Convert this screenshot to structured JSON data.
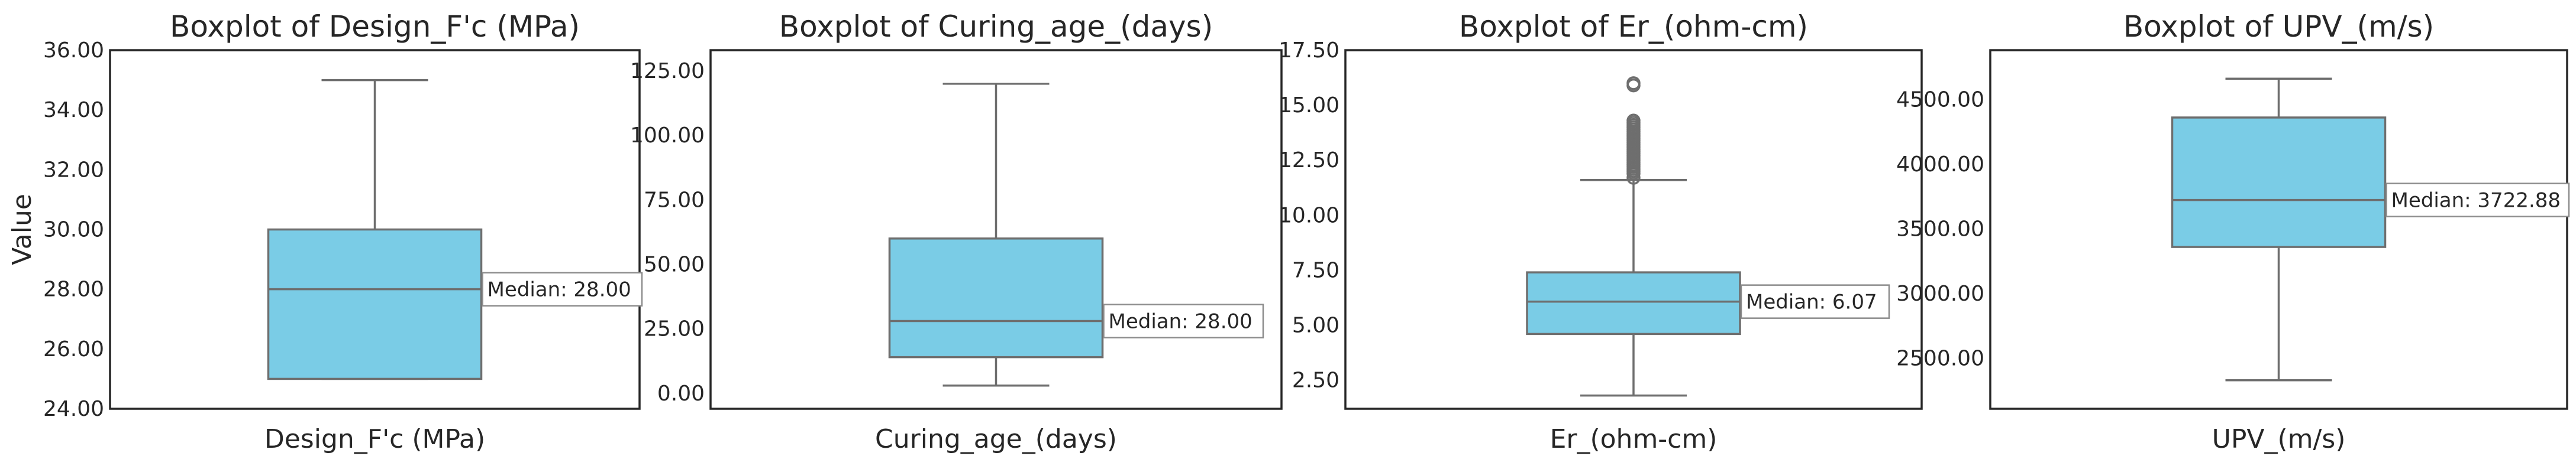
{
  "colors": {
    "box_fill": "#7ACCE6",
    "box_edge": "#6E6E6E",
    "axis_frame": "#262626",
    "annotation_border": "#8C8C8C",
    "background": "#FFFFFF"
  },
  "shared_ylabel": "Value",
  "chart_data": [
    {
      "type": "boxplot",
      "title": "Boxplot of Design_F'c (MPa)",
      "xlabel": "Design_F'c (MPa)",
      "ylim": [
        24,
        36
      ],
      "yticks": [
        24,
        26,
        28,
        30,
        32,
        34,
        36
      ],
      "ytick_labels": [
        "24.00",
        "26.00",
        "28.00",
        "30.00",
        "32.00",
        "34.00",
        "36.00"
      ],
      "stats": {
        "whisker_low": 25,
        "q1": 25,
        "median": 28,
        "q3": 30,
        "whisker_high": 35
      },
      "outliers": [],
      "median_label": "Median: 28.00"
    },
    {
      "type": "boxplot",
      "title": "Boxplot of Curing_age_(days)",
      "xlabel": "Curing_age_(days)",
      "ylim": [
        -6,
        133
      ],
      "yticks": [
        0,
        25,
        50,
        75,
        100,
        125
      ],
      "ytick_labels": [
        "0.00",
        "25.00",
        "50.00",
        "75.00",
        "100.00",
        "125.00"
      ],
      "stats": {
        "whisker_low": 3,
        "q1": 14,
        "median": 28,
        "q3": 60,
        "whisker_high": 120
      },
      "outliers": [],
      "median_label": "Median: 28.00"
    },
    {
      "type": "boxplot",
      "title": "Boxplot of Er_(ohm-cm)",
      "xlabel": "Er_(ohm-cm)",
      "ylim": [
        1.2,
        17.5
      ],
      "yticks": [
        2.5,
        5.0,
        7.5,
        10.0,
        12.5,
        15.0,
        17.5
      ],
      "ytick_labels": [
        "2.50",
        "5.00",
        "7.50",
        "10.00",
        "12.50",
        "15.00",
        "17.50"
      ],
      "stats": {
        "whisker_low": 1.8,
        "q1": 4.6,
        "median": 6.07,
        "q3": 7.4,
        "whisker_high": 11.6
      },
      "outliers": [
        11.7,
        11.9,
        12.0,
        12.1,
        12.2,
        12.3,
        12.4,
        12.5,
        12.6,
        12.7,
        12.8,
        12.9,
        13.0,
        13.1,
        13.2,
        13.3,
        13.4,
        13.5,
        13.6,
        13.7,
        13.8,
        13.9,
        14.0,
        14.1,
        14.2,
        14.3,
        15.9,
        16.0
      ],
      "median_label": "Median: 6.07"
    },
    {
      "type": "boxplot",
      "title": "Boxplot of UPV_(m/s)",
      "xlabel": "UPV_(m/s)",
      "ylim": [
        2110,
        4880
      ],
      "yticks": [
        2500,
        3000,
        3500,
        4000,
        4500
      ],
      "ytick_labels": [
        "2500.00",
        "3000.00",
        "3500.00",
        "4000.00",
        "4500.00"
      ],
      "stats": {
        "whisker_low": 2330,
        "q1": 3360,
        "median": 3722.88,
        "q3": 4360,
        "whisker_high": 4660
      },
      "outliers": [],
      "median_label": "Median: 3722.88"
    }
  ]
}
